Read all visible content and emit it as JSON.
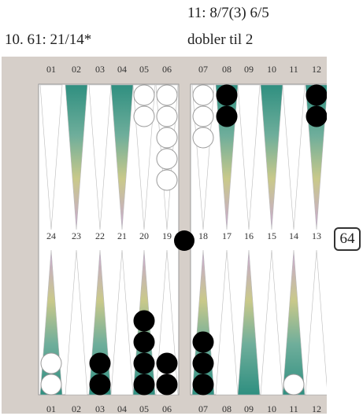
{
  "captions": {
    "left_move": "10. 61: 21/14*",
    "right_move_line1": "11: 8/7(3) 6/5",
    "right_move_line2": "dobler til 2"
  },
  "board": {
    "top_labels": [
      "01",
      "02",
      "03",
      "04",
      "05",
      "06",
      "07",
      "08",
      "09",
      "10",
      "11",
      "12"
    ],
    "middle_labels": [
      "24",
      "23",
      "22",
      "21",
      "20",
      "19",
      "18",
      "17",
      "16",
      "15",
      "14",
      "13"
    ],
    "bottom_labels": [
      "01",
      "02",
      "03",
      "04",
      "05",
      "06",
      "07",
      "08",
      "09",
      "10",
      "11",
      "12"
    ],
    "top_half": [
      {
        "index": 1,
        "white": 0,
        "black": 0
      },
      {
        "index": 2,
        "white": 0,
        "black": 0
      },
      {
        "index": 3,
        "white": 0,
        "black": 0
      },
      {
        "index": 4,
        "white": 0,
        "black": 0
      },
      {
        "index": 5,
        "white": 2,
        "black": 0
      },
      {
        "index": 6,
        "white": 5,
        "black": 0
      },
      {
        "index": 7,
        "white": 3,
        "black": 0
      },
      {
        "index": 8,
        "white": 0,
        "black": 2
      },
      {
        "index": 9,
        "white": 0,
        "black": 0
      },
      {
        "index": 10,
        "white": 0,
        "black": 0
      },
      {
        "index": 11,
        "white": 0,
        "black": 0
      },
      {
        "index": 12,
        "white": 0,
        "black": 2
      }
    ],
    "bottom_half": [
      {
        "index": 1,
        "white": 2,
        "black": 0
      },
      {
        "index": 2,
        "white": 0,
        "black": 0
      },
      {
        "index": 3,
        "white": 0,
        "black": 2
      },
      {
        "index": 4,
        "white": 0,
        "black": 0
      },
      {
        "index": 5,
        "white": 0,
        "black": 4
      },
      {
        "index": 6,
        "white": 0,
        "black": 2
      },
      {
        "index": 7,
        "white": 0,
        "black": 3
      },
      {
        "index": 8,
        "white": 0,
        "black": 0
      },
      {
        "index": 9,
        "white": 0,
        "black": 0
      },
      {
        "index": 10,
        "white": 0,
        "black": 0
      },
      {
        "index": 11,
        "white": 1,
        "black": 0
      },
      {
        "index": 12,
        "white": 0,
        "black": 0
      }
    ],
    "bar_black_checkers": 1,
    "cube_value": "64",
    "colors": {
      "frame": "#d6cfc9",
      "board_bg": "#ffffff",
      "black_checker": "#000000",
      "white_checker": "#ffffff",
      "colored_triangle_top": "#2e8b7a",
      "colored_triangle_mid": "#b5c98a",
      "colored_triangle_end": "#c9a8d8"
    }
  }
}
